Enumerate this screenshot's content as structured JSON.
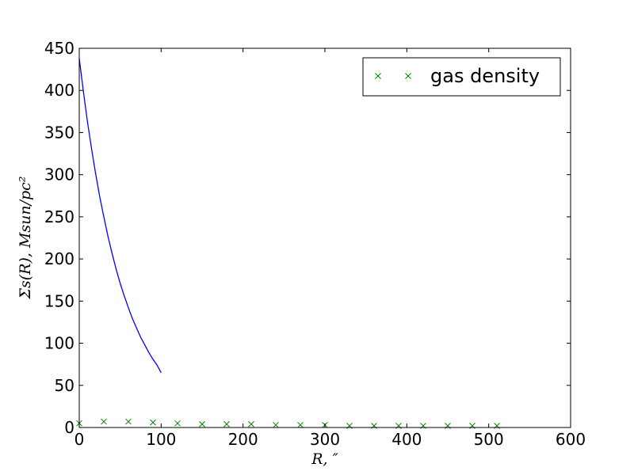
{
  "chart_data": {
    "type": "line",
    "xlabel": "R, ″",
    "ylabel": "Σs(R), Msun/pc²",
    "xlim": [
      0,
      600
    ],
    "ylim": [
      0,
      450
    ],
    "xticks": [
      0,
      100,
      200,
      300,
      400,
      500,
      600
    ],
    "yticks": [
      0,
      50,
      100,
      150,
      200,
      250,
      300,
      350,
      400,
      450
    ],
    "grid": false,
    "legend_position": "top-right",
    "series": [
      {
        "style": "line",
        "color": "#0000ff",
        "x": [
          0,
          5,
          10,
          15,
          20,
          25,
          30,
          35,
          40,
          45,
          50,
          55,
          60,
          65,
          70,
          75,
          80,
          85,
          90,
          95,
          100
        ],
        "y": [
          438,
          399,
          363,
          331,
          301,
          274,
          250,
          227,
          207,
          188,
          171,
          156,
          142,
          129,
          118,
          107,
          98,
          89,
          81,
          74,
          65
        ]
      },
      {
        "name": "gas density",
        "style": "markers",
        "marker": "x",
        "color": "#008000",
        "x": [
          0,
          30,
          60,
          90,
          120,
          150,
          180,
          210,
          240,
          270,
          300,
          330,
          360,
          390,
          420,
          450,
          480,
          510
        ],
        "y": [
          5,
          7,
          7,
          6,
          5,
          4,
          4,
          4,
          3,
          3,
          3,
          2,
          2,
          2,
          2,
          2,
          2,
          2
        ]
      }
    ]
  }
}
